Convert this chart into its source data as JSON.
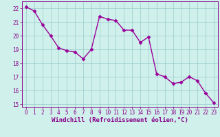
{
  "x": [
    0,
    1,
    2,
    3,
    4,
    5,
    6,
    7,
    8,
    9,
    10,
    11,
    12,
    13,
    14,
    15,
    16,
    17,
    18,
    19,
    20,
    21,
    22,
    23
  ],
  "y": [
    22.1,
    21.8,
    20.8,
    20.0,
    19.1,
    18.9,
    18.8,
    18.3,
    19.0,
    21.4,
    21.2,
    21.1,
    20.4,
    20.4,
    19.5,
    19.9,
    17.2,
    17.0,
    16.5,
    16.6,
    17.0,
    16.7,
    15.8,
    15.1
  ],
  "line_color": "#990099",
  "marker": "D",
  "marker_size": 2.5,
  "bg_color": "#cff0eb",
  "grid_color": "#99cccc",
  "xlabel": "Windchill (Refroidissement éolien,°C)",
  "ylabel": "",
  "title": "",
  "xlim": [
    -0.5,
    23.5
  ],
  "ylim": [
    14.8,
    22.5
  ],
  "yticks": [
    15,
    16,
    17,
    18,
    19,
    20,
    21,
    22
  ],
  "xticks": [
    0,
    1,
    2,
    3,
    4,
    5,
    6,
    7,
    8,
    9,
    10,
    11,
    12,
    13,
    14,
    15,
    16,
    17,
    18,
    19,
    20,
    21,
    22,
    23
  ],
  "tick_label_color": "#880088",
  "tick_label_size": 5.5,
  "xlabel_size": 6.5,
  "line_width": 1.0
}
